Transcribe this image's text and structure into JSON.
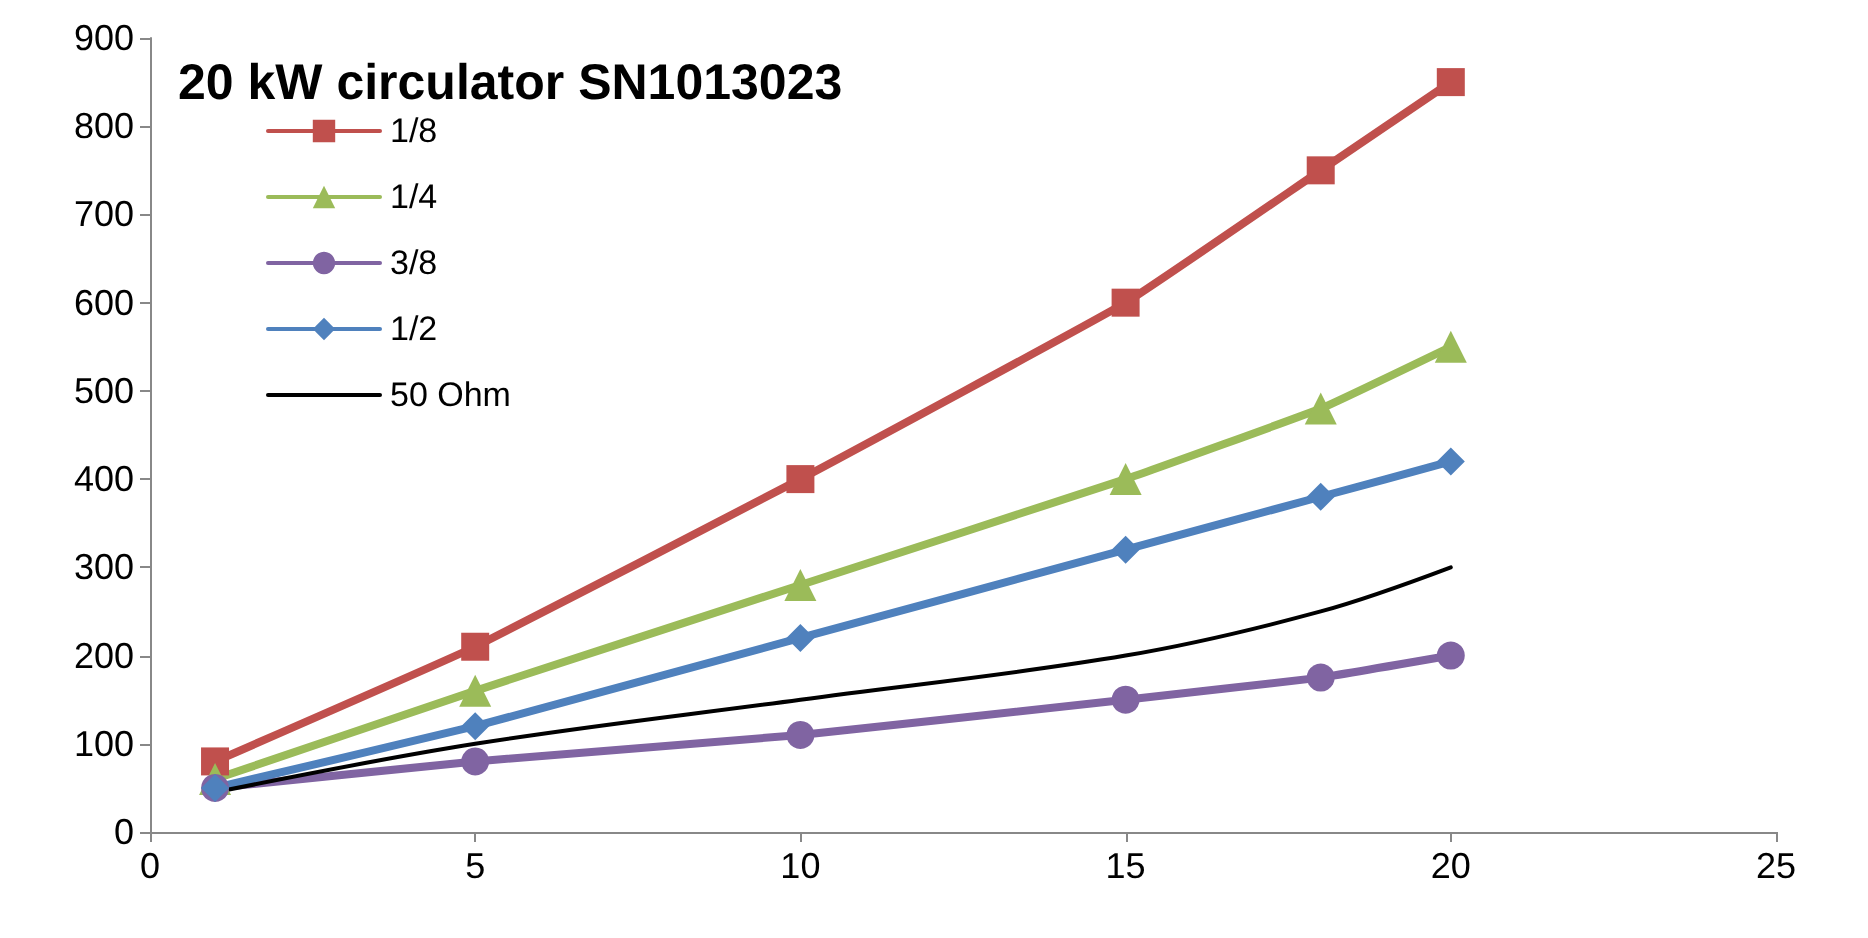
{
  "chart_data": {
    "type": "line",
    "title": "20 kW circulator SN1013023",
    "x": [
      1,
      5,
      10,
      15,
      18,
      20
    ],
    "series": [
      {
        "name": "1/8",
        "color": "#c0504d",
        "marker": "square",
        "values": [
          80,
          210,
          400,
          600,
          750,
          850
        ]
      },
      {
        "name": "1/4",
        "color": "#9bbb59",
        "marker": "triangle",
        "values": [
          60,
          160,
          280,
          400,
          480,
          550
        ]
      },
      {
        "name": "3/8",
        "color": "#8064a2",
        "marker": "circle",
        "values": [
          50,
          80,
          110,
          150,
          175,
          200
        ]
      },
      {
        "name": "1/2",
        "color": "#4f81bd",
        "marker": "diamond",
        "values": [
          50,
          120,
          220,
          320,
          380,
          420
        ]
      },
      {
        "name": "50 Ohm",
        "color": "#000000",
        "marker": "none",
        "values": [
          45,
          100,
          150,
          200,
          250,
          300
        ]
      }
    ],
    "xlim": [
      0,
      25
    ],
    "xticks": [
      0,
      5,
      10,
      15,
      20,
      25
    ],
    "ylim": [
      0,
      900
    ],
    "yticks": [
      0,
      100,
      200,
      300,
      400,
      500,
      600,
      700,
      800,
      900
    ],
    "grid": false,
    "legend": "top left",
    "line_style": "solid"
  }
}
